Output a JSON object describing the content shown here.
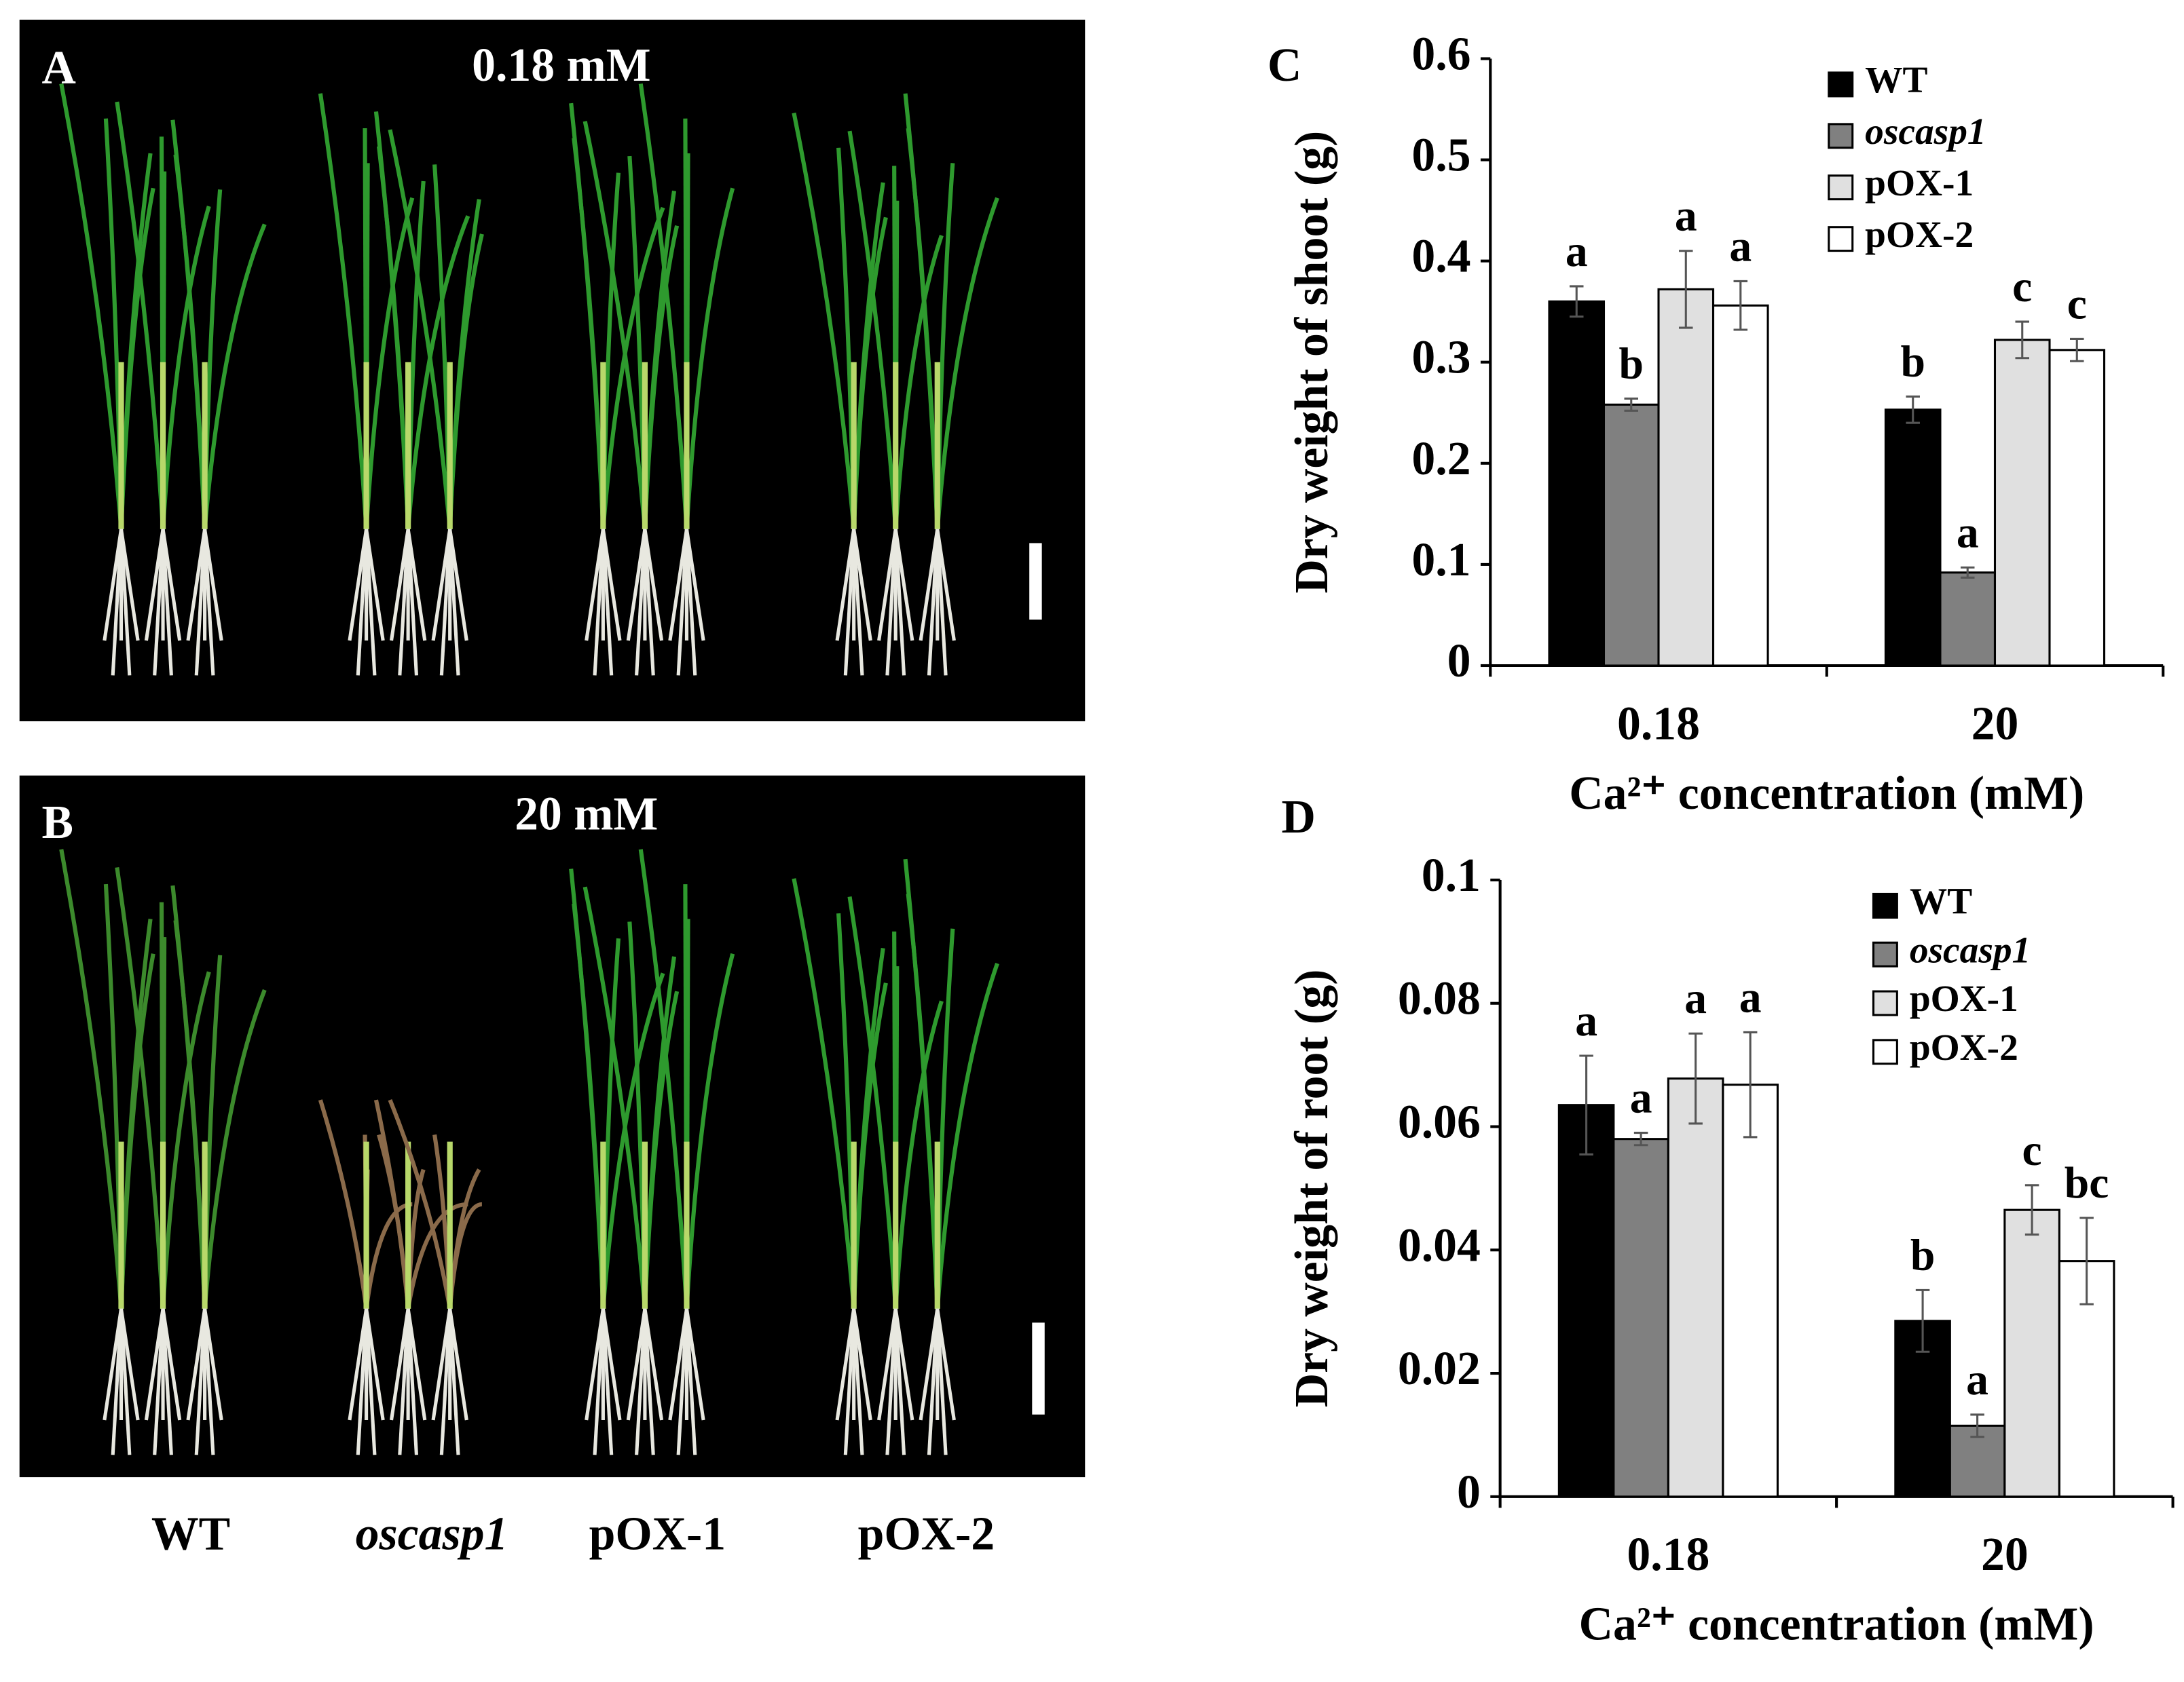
{
  "photos": {
    "panels": [
      {
        "label": "A",
        "title": "0.18 mM"
      },
      {
        "label": "B",
        "title": "20 mM"
      }
    ],
    "genotypes": [
      "WT",
      "oscasp1",
      "pOX-1",
      "pOX-2"
    ]
  },
  "chart_data": [
    {
      "type": "bar",
      "panel_label": "C",
      "y_label": "Dry weight of shoot (g)",
      "x_label": "Ca²⁺ concentration (mM)",
      "categories": [
        "0.18",
        "20"
      ],
      "series": [
        {
          "name": "WT",
          "color": "#000000",
          "values": [
            0.36,
            0.253
          ],
          "errors": [
            0.015,
            0.013
          ],
          "letters": [
            "a",
            "b"
          ]
        },
        {
          "name": "oscasp1",
          "italic": true,
          "color": "#808080",
          "values": [
            0.258,
            0.092
          ],
          "errors": [
            0.006,
            0.005
          ],
          "letters": [
            "b",
            "a"
          ]
        },
        {
          "name": "pOX-1",
          "color": "#e0e0e0",
          "values": [
            0.372,
            0.322
          ],
          "errors": [
            0.038,
            0.018
          ],
          "letters": [
            "a",
            "c"
          ]
        },
        {
          "name": "pOX-2",
          "color": "#ffffff",
          "values": [
            0.356,
            0.312
          ],
          "errors": [
            0.024,
            0.011
          ],
          "letters": [
            "a",
            "c"
          ]
        }
      ],
      "ylim": [
        0,
        0.6
      ],
      "yticks": [
        0,
        0.1,
        0.2,
        0.3,
        0.4,
        0.5,
        0.6
      ],
      "legend": "upper right"
    },
    {
      "type": "bar",
      "panel_label": "D",
      "y_label": "Dry weight of root (g)",
      "x_label": "Ca²⁺ concentration (mM)",
      "categories": [
        "0.18",
        "20"
      ],
      "series": [
        {
          "name": "WT",
          "color": "#000000",
          "values": [
            0.0635,
            0.0285
          ],
          "errors": [
            0.008,
            0.005
          ],
          "letters": [
            "a",
            "b"
          ]
        },
        {
          "name": "oscasp1",
          "italic": true,
          "color": "#808080",
          "values": [
            0.058,
            0.0115
          ],
          "errors": [
            0.001,
            0.0018
          ],
          "letters": [
            "a",
            "a"
          ]
        },
        {
          "name": "pOX-1",
          "color": "#e0e0e0",
          "values": [
            0.0678,
            0.0465
          ],
          "errors": [
            0.0073,
            0.004
          ],
          "letters": [
            "a",
            "c"
          ]
        },
        {
          "name": "pOX-2",
          "color": "#ffffff",
          "values": [
            0.0668,
            0.0382
          ],
          "errors": [
            0.0085,
            0.007
          ],
          "letters": [
            "a",
            "bc"
          ]
        }
      ],
      "ylim": [
        0,
        0.1
      ],
      "yticks": [
        0,
        0.02,
        0.04,
        0.06,
        0.08,
        0.1
      ],
      "legend": "upper right"
    }
  ]
}
